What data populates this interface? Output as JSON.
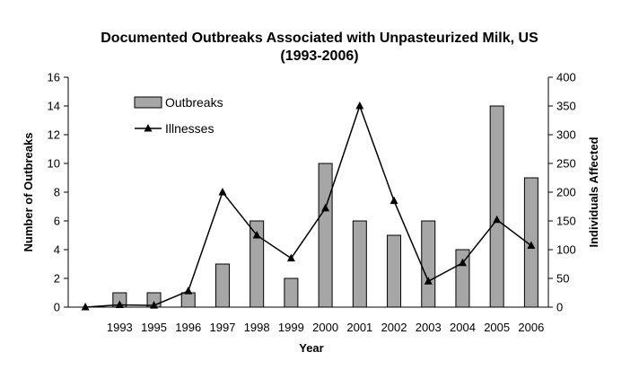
{
  "chart_data": {
    "type": "bar",
    "title": "Documented Outbreaks Associated with Unpasteurized Milk, US",
    "subtitle": "(1993-2006)",
    "xlabel": "Year",
    "ylabel": "Number of Outbreaks",
    "y2label": "Individuals Affected",
    "categories": [
      "",
      "1993",
      "1995",
      "1996",
      "1997",
      "1998",
      "1999",
      "2000",
      "2001",
      "2002",
      "2003",
      "2004",
      "2005",
      "2006"
    ],
    "ylim": [
      0,
      16
    ],
    "y2lim": [
      0,
      400
    ],
    "yticks": [
      0,
      2,
      4,
      6,
      8,
      10,
      12,
      14,
      16
    ],
    "y2ticks": [
      0,
      50,
      100,
      150,
      200,
      250,
      300,
      350,
      400
    ],
    "grid": false,
    "legend_position": "top-left",
    "series": [
      {
        "name": "Outbreaks",
        "type": "bar",
        "axis": "left",
        "color": "#a6a6a6",
        "values": [
          0,
          1,
          1,
          1,
          3,
          6,
          2,
          10,
          6,
          5,
          6,
          4,
          14,
          9
        ]
      },
      {
        "name": "Illnesses",
        "type": "line",
        "axis": "right",
        "color": "#000000",
        "marker": "triangle",
        "values": [
          0,
          4,
          3,
          28,
          200,
          125,
          85,
          172,
          350,
          185,
          45,
          77,
          152,
          107
        ]
      }
    ]
  }
}
